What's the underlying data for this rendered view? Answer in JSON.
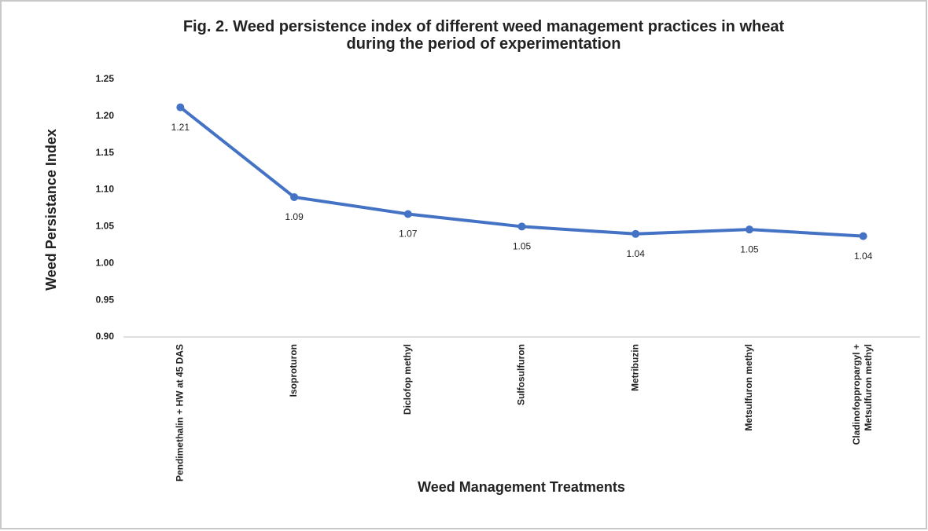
{
  "chart_data": {
    "type": "line",
    "title": "Fig. 2. Weed persistence index of different weed management practices in wheat\nduring the period of experimentation",
    "x_label": "Weed Management Treatments",
    "y_label": "Weed Persistance Index",
    "categories": [
      "Pendimethalin + HW at 45 DAS",
      "Isoproturon",
      "Diclofop methyl",
      "Sulfosulfuron",
      "Metribuzin",
      "Metsulfuron methyl",
      "Cladinofoppropargyl +\nMetsulfuron methyl"
    ],
    "series": [
      {
        "name": "Weed persistence index",
        "color": "#4472c4",
        "values": [
          1.212,
          1.09,
          1.067,
          1.05,
          1.04,
          1.046,
          1.037
        ],
        "value_labels": [
          "1.21",
          "1.09",
          "1.07",
          "1.05",
          "1.04",
          "1.05",
          "1.04"
        ]
      }
    ],
    "ylim": [
      0.9,
      1.25
    ],
    "yticks": [
      {
        "value": 0.9,
        "label": "0.90"
      },
      {
        "value": 0.95,
        "label": "0.95"
      },
      {
        "value": 1.0,
        "label": "1.00"
      },
      {
        "value": 1.05,
        "label": "1.05"
      },
      {
        "value": 1.1,
        "label": "1.10"
      },
      {
        "value": 1.15,
        "label": "1.15"
      },
      {
        "value": 1.2,
        "label": "1.20"
      },
      {
        "value": 1.25,
        "label": "1.25"
      }
    ],
    "grid": false
  }
}
